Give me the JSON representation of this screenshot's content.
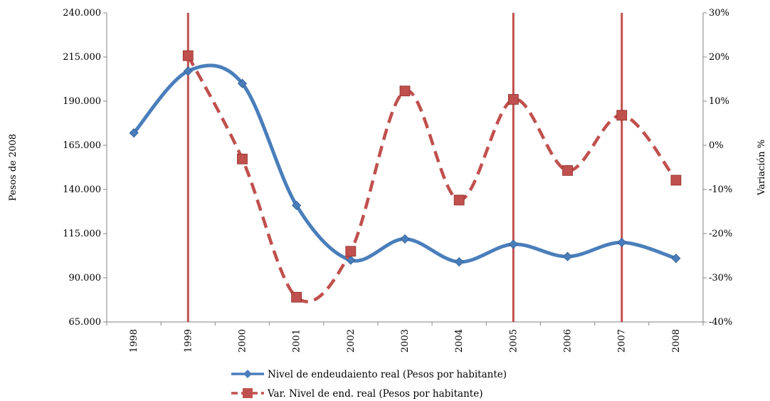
{
  "chart_data": {
    "type": "line",
    "x": [
      "1998",
      "1999",
      "2000",
      "2001",
      "2002",
      "2003",
      "2004",
      "2005",
      "2006",
      "2007",
      "2008"
    ],
    "series": [
      {
        "name": "Nivel de endeudaiento real (Pesos por habitante)",
        "axis": "left",
        "values": [
          172000,
          207000,
          200000,
          131000,
          100000,
          112000,
          99000,
          109000,
          102000,
          110000,
          101000
        ],
        "color": "#4a7ebb",
        "marker": "diamond",
        "style": "solid"
      },
      {
        "name": "Var. Nivel de end. real (Pesos por habitante)",
        "axis": "right",
        "values": [
          null,
          20.3,
          -3.1,
          -34.4,
          -24.0,
          12.3,
          -12.4,
          10.4,
          -5.7,
          6.8,
          -7.9
        ],
        "color": "#c0504d",
        "marker": "square",
        "style": "dashed"
      }
    ],
    "ylabel": "Pesos de 2008",
    "y2label": "Variación %",
    "ylim": [
      65000,
      240000
    ],
    "y2lim": [
      -40,
      30
    ],
    "yticks": [
      "65.000",
      "90.000",
      "115.000",
      "140.000",
      "165.000",
      "190.000",
      "215.000",
      "240.000"
    ],
    "y2ticks": [
      "-40%",
      "-30%",
      "-20%",
      "-10%",
      "0%",
      "10%",
      "20%",
      "30%"
    ],
    "vertical_markers": [
      "1999",
      "2005",
      "2007"
    ],
    "marker_color": "#c0504d",
    "legend_placement": "bottom",
    "grid": false
  }
}
